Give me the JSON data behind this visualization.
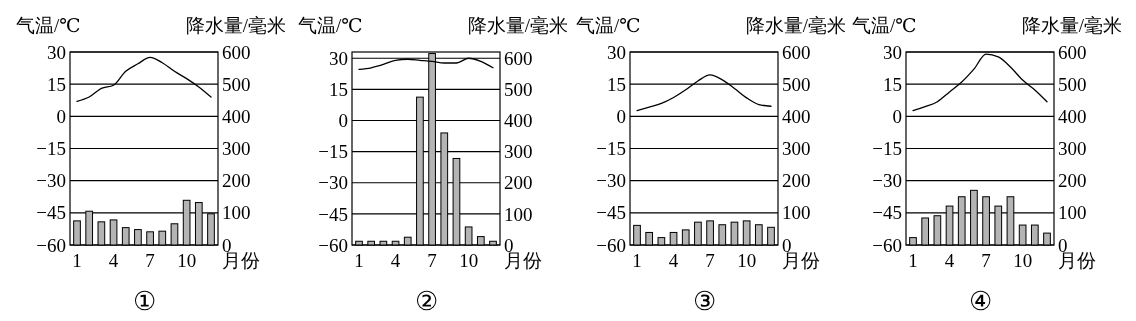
{
  "chart_data": [
    {
      "type": "bar",
      "title": "①",
      "ylabel": "气温/℃",
      "y2label": "降水量/毫米",
      "xlabel": "月份",
      "categories": [
        "1",
        null,
        null,
        "4",
        null,
        null,
        "7",
        null,
        null,
        "10",
        null,
        null
      ],
      "ylim": [
        -60,
        30
      ],
      "yticks": [
        -60,
        -45,
        -30,
        -15,
        0,
        15,
        30
      ],
      "y2lim": [
        0,
        600
      ],
      "y2ticks": [
        0,
        100,
        200,
        300,
        400,
        500,
        600
      ],
      "grid": "y",
      "series": [
        {
          "axis": "y2",
          "color": "#b4b4b4",
          "values": [
            75,
            105,
            72,
            78,
            54,
            48,
            41,
            43,
            66,
            139,
            132,
            97
          ]
        },
        {
          "type": "line",
          "color": "#000000",
          "values": [
            7,
            9,
            13,
            14.5,
            21,
            24.5,
            27.5,
            25,
            21,
            17.6,
            13.7,
            9
          ]
        }
      ]
    },
    {
      "type": "bar",
      "title": "②",
      "ylabel": "气温/℃",
      "y2label": "降水量/毫米",
      "xlabel": "月份",
      "categories": [
        "1",
        null,
        null,
        "4",
        null,
        null,
        "7",
        null,
        null,
        "10",
        null,
        null
      ],
      "ylim": [
        -60,
        33
      ],
      "yticks": [
        -60,
        -45,
        -30,
        -15,
        0,
        15,
        30
      ],
      "y2lim": [
        0,
        620
      ],
      "y2ticks": [
        0,
        100,
        200,
        300,
        400,
        500,
        600
      ],
      "grid": "y",
      "series": [
        {
          "axis": "y2",
          "color": "#b4b4b4",
          "values": [
            12,
            12,
            12,
            12,
            25,
            475,
            615,
            360,
            278,
            58,
            27,
            12
          ]
        },
        {
          "type": "line",
          "color": "#000000",
          "values": [
            24.6,
            25.4,
            27,
            29,
            29.5,
            29,
            28.5,
            27.7,
            27.7,
            30,
            28.5,
            25.4
          ]
        }
      ]
    },
    {
      "type": "bar",
      "title": "③",
      "ylabel": "气温/℃",
      "y2label": "降水量/毫米",
      "xlabel": "月份",
      "categories": [
        "1",
        null,
        null,
        "4",
        null,
        null,
        "7",
        null,
        null,
        "10",
        null,
        null
      ],
      "ylim": [
        -60,
        30
      ],
      "yticks": [
        -60,
        -45,
        -30,
        -15,
        0,
        15,
        30
      ],
      "y2lim": [
        0,
        600
      ],
      "y2ticks": [
        0,
        100,
        200,
        300,
        400,
        500,
        600
      ],
      "grid": "y",
      "series": [
        {
          "axis": "y2",
          "color": "#b4b4b4",
          "values": [
            61,
            39,
            23,
            39,
            47,
            71,
            75,
            63,
            71,
            75,
            63,
            55
          ]
        },
        {
          "type": "line",
          "color": "#000000",
          "values": [
            2.7,
            4.3,
            6,
            8.8,
            12.4,
            16.5,
            19.3,
            17,
            13,
            8.6,
            5.5,
            4.7
          ]
        }
      ]
    },
    {
      "type": "bar",
      "title": "④",
      "ylabel": "气温/℃",
      "y2label": "降水量/毫米",
      "xlabel": "月份",
      "categories": [
        "1",
        null,
        null,
        "4",
        null,
        null,
        "7",
        null,
        null,
        "10",
        null,
        null
      ],
      "ylim": [
        -60,
        30
      ],
      "yticks": [
        -60,
        -45,
        -30,
        -15,
        0,
        15,
        30
      ],
      "y2lim": [
        0,
        600
      ],
      "y2ticks": [
        0,
        100,
        200,
        300,
        400,
        500,
        600
      ],
      "grid": "y",
      "series": [
        {
          "axis": "y2",
          "color": "#b4b4b4",
          "values": [
            23,
            84,
            91,
            121,
            150,
            170,
            150,
            121,
            150,
            62,
            62,
            37
          ]
        },
        {
          "type": "line",
          "color": "#000000",
          "values": [
            2.7,
            4.5,
            6.8,
            11.4,
            16,
            22,
            29,
            27.7,
            23,
            16.9,
            12.3,
            6.8
          ]
        }
      ]
    }
  ]
}
